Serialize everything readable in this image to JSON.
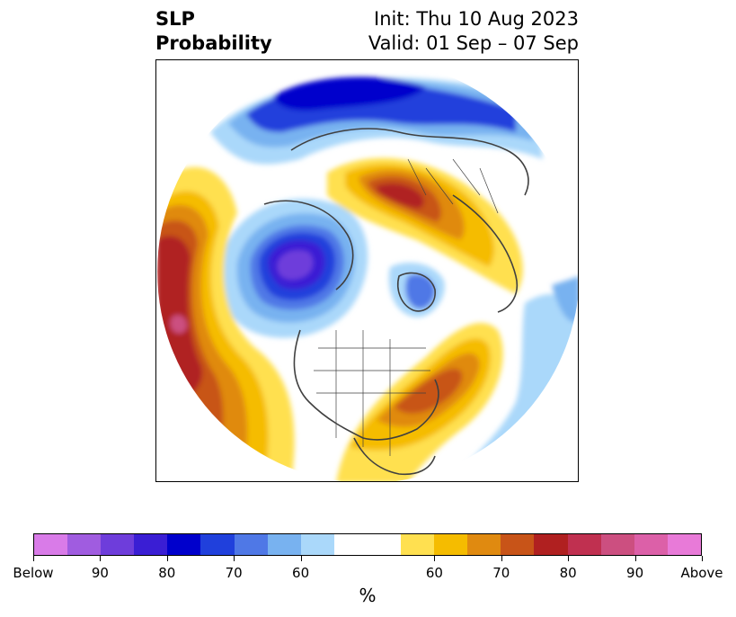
{
  "title": {
    "left_line1": "SLP",
    "left_line2": "Probability",
    "right_line1": "Init: Thu 10 Aug 2023",
    "right_line2": "Valid: 01 Sep – 07 Sep"
  },
  "map": {
    "projection": "north-polar-stereographic",
    "features": [
      "continents",
      "country-borders",
      "us-state-borders"
    ]
  },
  "colorbar": {
    "unit": "%",
    "colors": [
      "#d97be8",
      "#a05ce0",
      "#6e3ddb",
      "#3a1ed4",
      "#0000cc",
      "#2040dc",
      "#4f78e6",
      "#78b2f0",
      "#aad8fa",
      "#ffffff",
      "#ffffff",
      "#ffe050",
      "#f5bc00",
      "#e08a10",
      "#c85418",
      "#b02020",
      "#c03050",
      "#cc4f80",
      "#dc60a8",
      "#e87ad8"
    ],
    "tick_labels": [
      "Below",
      "90",
      "80",
      "70",
      "60",
      "60",
      "70",
      "80",
      "90",
      "Above"
    ]
  }
}
